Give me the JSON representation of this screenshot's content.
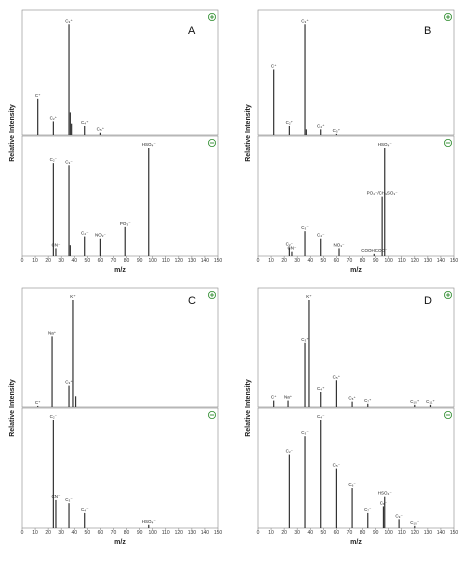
{
  "figure": {
    "xlabel": "m/z",
    "ylabel": "Relative Intensity",
    "xticks": [
      0,
      10,
      20,
      30,
      40,
      50,
      60,
      70,
      80,
      90,
      100,
      110,
      120,
      130,
      140,
      150
    ]
  },
  "chart_data": [
    {
      "type": "bar",
      "panel": "A",
      "xlim": [
        0,
        150
      ],
      "xlabel": "m/z",
      "ylabel": "Relative Intensity",
      "positive": {
        "polarity": "positive",
        "peaks": [
          {
            "mz": 12,
            "value": 0.32,
            "label": "C⁺"
          },
          {
            "mz": 24,
            "value": 0.12,
            "label": "C₂⁺"
          },
          {
            "mz": 36,
            "value": 0.98,
            "label": "C₃⁺"
          },
          {
            "mz": 37,
            "value": 0.2,
            "label": ""
          },
          {
            "mz": 38,
            "value": 0.1,
            "label": ""
          },
          {
            "mz": 48,
            "value": 0.08,
            "label": "C₄⁺"
          },
          {
            "mz": 60,
            "value": 0.02,
            "label": "C₅⁺"
          }
        ]
      },
      "negative": {
        "polarity": "negative",
        "peaks": [
          {
            "mz": 24,
            "value": 0.86,
            "label": "C₂⁻"
          },
          {
            "mz": 26,
            "value": 0.07,
            "label": "CN⁻"
          },
          {
            "mz": 36,
            "value": 0.84,
            "label": "C₃⁻"
          },
          {
            "mz": 37,
            "value": 0.1,
            "label": ""
          },
          {
            "mz": 48,
            "value": 0.18,
            "label": "C₄⁻"
          },
          {
            "mz": 60,
            "value": 0.16,
            "label": "NO₂⁻"
          },
          {
            "mz": 79,
            "value": 0.27,
            "label": "PO₃⁻"
          },
          {
            "mz": 97,
            "value": 1.0,
            "label": "HSO₄⁻"
          }
        ]
      }
    },
    {
      "type": "bar",
      "panel": "B",
      "xlim": [
        0,
        150
      ],
      "xlabel": "m/z",
      "ylabel": "Relative Intensity",
      "positive": {
        "polarity": "positive",
        "peaks": [
          {
            "mz": 12,
            "value": 0.58,
            "label": "C⁺"
          },
          {
            "mz": 24,
            "value": 0.08,
            "label": "C₂⁺"
          },
          {
            "mz": 36,
            "value": 0.98,
            "label": "C₃⁺"
          },
          {
            "mz": 37,
            "value": 0.05,
            "label": ""
          },
          {
            "mz": 48,
            "value": 0.05,
            "label": "C₄⁺"
          },
          {
            "mz": 60,
            "value": 0.01,
            "label": "C₅⁺"
          }
        ]
      },
      "negative": {
        "polarity": "negative",
        "peaks": [
          {
            "mz": 24,
            "value": 0.08,
            "label": "C₂⁻"
          },
          {
            "mz": 26,
            "value": 0.04,
            "label": "CN⁻"
          },
          {
            "mz": 36,
            "value": 0.23,
            "label": "C₃⁻"
          },
          {
            "mz": 48,
            "value": 0.16,
            "label": "C₄⁻"
          },
          {
            "mz": 62,
            "value": 0.07,
            "label": "NO₃⁻"
          },
          {
            "mz": 89,
            "value": 0.02,
            "label": "COOHCOO⁻"
          },
          {
            "mz": 95,
            "value": 0.55,
            "label": "PO₄⁻/CH₃SO₃⁻"
          },
          {
            "mz": 97,
            "value": 1.0,
            "label": "HSO₄⁻"
          }
        ]
      }
    },
    {
      "type": "bar",
      "panel": "C",
      "xlim": [
        0,
        150
      ],
      "xlabel": "m/z",
      "ylabel": "Relative Intensity",
      "positive": {
        "polarity": "positive",
        "peaks": [
          {
            "mz": 12,
            "value": 0.01,
            "label": "C⁺"
          },
          {
            "mz": 23,
            "value": 0.66,
            "label": "Na⁺"
          },
          {
            "mz": 36,
            "value": 0.2,
            "label": "C₃⁺"
          },
          {
            "mz": 39,
            "value": 1.0,
            "label": "K⁺"
          },
          {
            "mz": 41,
            "value": 0.1,
            "label": ""
          }
        ]
      },
      "negative": {
        "polarity": "negative",
        "peaks": [
          {
            "mz": 24,
            "value": 1.0,
            "label": "C₂⁻"
          },
          {
            "mz": 26,
            "value": 0.26,
            "label": "CN⁻"
          },
          {
            "mz": 36,
            "value": 0.23,
            "label": "C₃⁻"
          },
          {
            "mz": 48,
            "value": 0.14,
            "label": "C₄⁻"
          },
          {
            "mz": 97,
            "value": 0.03,
            "label": "HSO₄⁻"
          }
        ]
      }
    },
    {
      "type": "bar",
      "panel": "D",
      "xlim": [
        0,
        150
      ],
      "xlabel": "m/z",
      "ylabel": "Relative Intensity",
      "positive": {
        "polarity": "positive",
        "peaks": [
          {
            "mz": 12,
            "value": 0.06,
            "label": "C⁺"
          },
          {
            "mz": 23,
            "value": 0.06,
            "label": "Na⁺"
          },
          {
            "mz": 36,
            "value": 0.6,
            "label": "C₃⁺"
          },
          {
            "mz": 39,
            "value": 1.0,
            "label": "K⁺"
          },
          {
            "mz": 48,
            "value": 0.14,
            "label": "C₄⁺"
          },
          {
            "mz": 60,
            "value": 0.25,
            "label": "C₅⁺"
          },
          {
            "mz": 72,
            "value": 0.05,
            "label": "C₆⁺"
          },
          {
            "mz": 84,
            "value": 0.03,
            "label": "C₇⁺"
          },
          {
            "mz": 120,
            "value": 0.02,
            "label": "C₁₀⁺"
          },
          {
            "mz": 132,
            "value": 0.02,
            "label": "C₁₁⁺"
          }
        ]
      },
      "negative": {
        "polarity": "negative",
        "peaks": [
          {
            "mz": 24,
            "value": 0.68,
            "label": "C₂⁻"
          },
          {
            "mz": 36,
            "value": 0.85,
            "label": "C₃⁻"
          },
          {
            "mz": 48,
            "value": 1.0,
            "label": "C₄⁻"
          },
          {
            "mz": 60,
            "value": 0.55,
            "label": "C₅⁻"
          },
          {
            "mz": 72,
            "value": 0.37,
            "label": "C₆⁻"
          },
          {
            "mz": 84,
            "value": 0.14,
            "label": "C₇⁻"
          },
          {
            "mz": 96,
            "value": 0.2,
            "label": "C₈⁻"
          },
          {
            "mz": 97,
            "value": 0.29,
            "label": "HSO₄⁻"
          },
          {
            "mz": 108,
            "value": 0.08,
            "label": "C₉⁻"
          },
          {
            "mz": 120,
            "value": 0.02,
            "label": "C₁₀⁻"
          }
        ]
      }
    }
  ]
}
